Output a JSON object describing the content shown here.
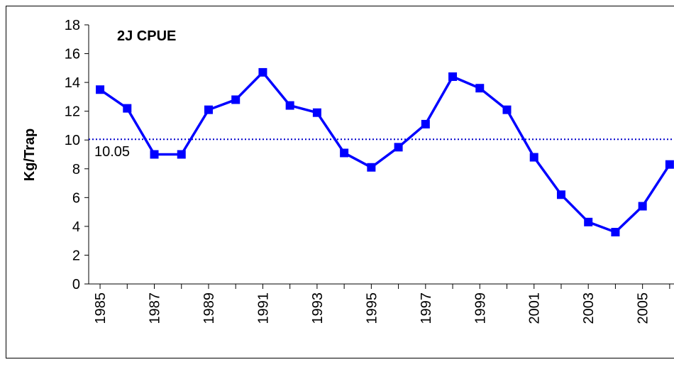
{
  "chart_data": {
    "type": "line",
    "title": "2J CPUE",
    "ylabel": "Kg/Trap",
    "x": [
      1985,
      1986,
      1987,
      1988,
      1989,
      1990,
      1991,
      1992,
      1993,
      1994,
      1995,
      1996,
      1997,
      1998,
      1999,
      2000,
      2001,
      2002,
      2003,
      2004,
      2005,
      2006
    ],
    "series": [
      {
        "name": "2J CPUE",
        "color": "#0000ff",
        "values": [
          13.5,
          12.2,
          9.0,
          9.0,
          12.1,
          12.8,
          14.7,
          12.4,
          11.9,
          9.1,
          8.1,
          9.5,
          11.1,
          14.4,
          13.6,
          12.1,
          8.8,
          6.2,
          4.3,
          3.6,
          5.4,
          8.3
        ]
      }
    ],
    "reference_line": 10.05,
    "xlim": [
      1984.58,
      2006.16
    ],
    "xticks": [
      1985,
      1987,
      1989,
      1991,
      1993,
      1995,
      1997,
      1999,
      2001,
      2003,
      2005
    ],
    "ylim": [
      0,
      18
    ],
    "yticks": [
      0,
      2,
      4,
      6,
      8,
      10,
      12,
      14,
      16,
      18
    ],
    "grid": false
  }
}
